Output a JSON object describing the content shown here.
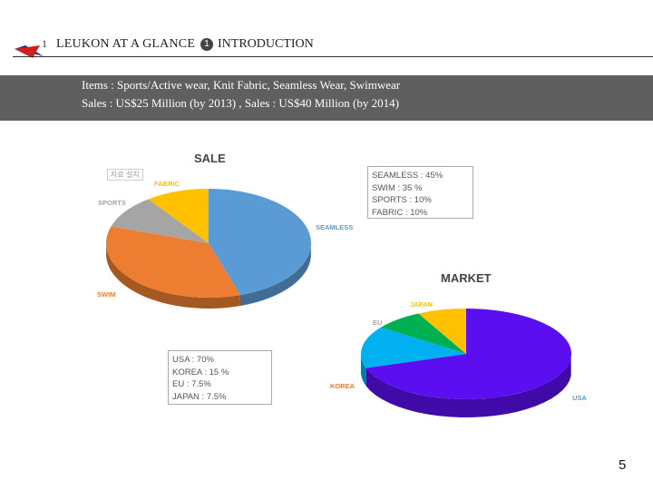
{
  "header": {
    "bullet": "1",
    "title": "LEUKON AT A GLANCE",
    "number": "1",
    "section": "INTRODUCTION"
  },
  "summary": {
    "line1": "Items : Sports/Active wear, Knit Fabric, Seamless Wear, Swimwear",
    "line2": "Sales : US$25 Million (by 2013) ,  Sales : US$40 Million (by 2014)"
  },
  "stamp_text": "자료 설치",
  "page_number": "5",
  "chart_data": [
    {
      "type": "pie",
      "title": "SALE",
      "slices": [
        {
          "label": "SEAMLESS",
          "value": 45,
          "color": "#5b9bd5"
        },
        {
          "label": "SWIM",
          "value": 35,
          "color": "#ed7d31"
        },
        {
          "label": "SPORTS",
          "value": 10,
          "color": "#a5a5a5"
        },
        {
          "label": "FABRIC",
          "value": 10,
          "color": "#ffc000"
        }
      ],
      "legend_lines": [
        "SEAMLESS : 45%",
        "SWIM : 35 %",
        "SPORTS : 10%",
        "FABRIC : 10%"
      ]
    },
    {
      "type": "pie",
      "title": "MARKET",
      "slices": [
        {
          "label": "USA",
          "value": 70,
          "color": "#5b0ef0"
        },
        {
          "label": "KOREA",
          "value": 15,
          "color": "#00b0f0"
        },
        {
          "label": "EU",
          "value": 7.5,
          "color": "#00b050"
        },
        {
          "label": "JAPAN",
          "value": 7.5,
          "color": "#ffc000"
        }
      ],
      "legend_lines": [
        "USA : 70%",
        "KOREA : 15 %",
        "EU : 7.5%",
        "JAPAN : 7.5%"
      ]
    }
  ]
}
